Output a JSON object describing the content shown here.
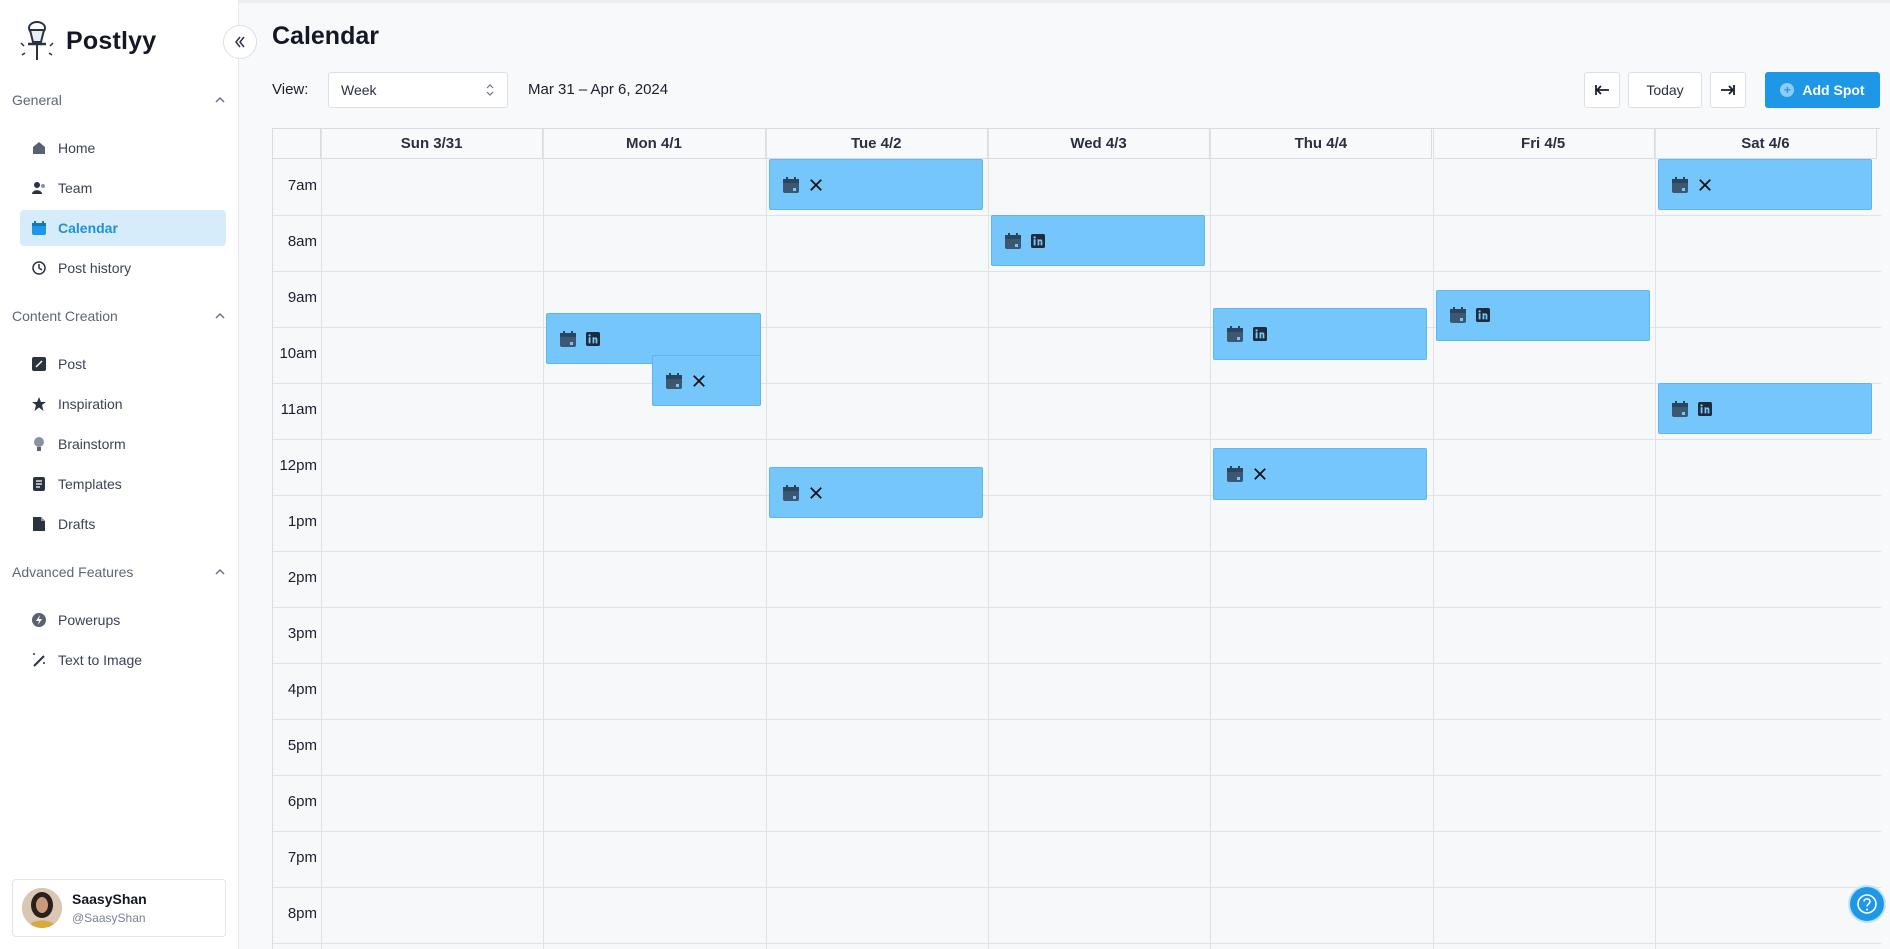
{
  "app": {
    "name": "Postlyy"
  },
  "sidebar": {
    "sections": [
      {
        "title": "General",
        "items": [
          {
            "label": "Home",
            "icon": "home-icon"
          },
          {
            "label": "Team",
            "icon": "team-icon"
          },
          {
            "label": "Calendar",
            "icon": "calendar-icon",
            "active": true
          },
          {
            "label": "Post history",
            "icon": "history-icon"
          }
        ]
      },
      {
        "title": "Content Creation",
        "items": [
          {
            "label": "Post",
            "icon": "pencil-icon"
          },
          {
            "label": "Inspiration",
            "icon": "star-icon"
          },
          {
            "label": "Brainstorm",
            "icon": "lightbulb-icon"
          },
          {
            "label": "Templates",
            "icon": "template-icon"
          },
          {
            "label": "Drafts",
            "icon": "drafts-icon"
          }
        ]
      },
      {
        "title": "Advanced Features",
        "items": [
          {
            "label": "Powerups",
            "icon": "bolt-icon"
          },
          {
            "label": "Text to Image",
            "icon": "magic-wand-icon"
          }
        ]
      }
    ],
    "user": {
      "name": "SaasyShan",
      "handle": "@SaasyShan"
    }
  },
  "header": {
    "title": "Calendar",
    "view_label": "View:",
    "view_value": "Week",
    "date_range": "Mar 31 – Apr 6, 2024",
    "today_label": "Today",
    "add_spot_label": "Add Spot"
  },
  "calendar": {
    "days": [
      "Sun 3/31",
      "Mon 4/1",
      "Tue 4/2",
      "Wed 4/3",
      "Thu 4/4",
      "Fri 4/5",
      "Sat 4/6"
    ],
    "hours": [
      "7am",
      "8am",
      "9am",
      "10am",
      "11am",
      "12pm",
      "1pm",
      "2pm",
      "3pm",
      "4pm",
      "5pm",
      "6pm",
      "7pm",
      "8pm"
    ],
    "events": [
      {
        "day": "Tue 4/2",
        "start": "7:00",
        "end": "7:55",
        "network": "x"
      },
      {
        "day": "Wed 4/3",
        "start": "8:00",
        "end": "8:55",
        "network": "linkedin"
      },
      {
        "day": "Mon 4/1",
        "start": "9:45",
        "end": "10:40",
        "network": "linkedin"
      },
      {
        "day": "Mon 4/1",
        "start": "10:30",
        "end": "11:25",
        "network": "x"
      },
      {
        "day": "Thu 4/4",
        "start": "9:40",
        "end": "10:35",
        "network": "linkedin"
      },
      {
        "day": "Fri 4/5",
        "start": "9:20",
        "end": "10:15",
        "network": "linkedin"
      },
      {
        "day": "Sat 4/6",
        "start": "7:00",
        "end": "7:55",
        "network": "x"
      },
      {
        "day": "Sat 4/6",
        "start": "11:00",
        "end": "11:55",
        "network": "linkedin"
      },
      {
        "day": "Tue 4/2",
        "start": "12:30",
        "end": "13:25",
        "network": "x"
      },
      {
        "day": "Thu 4/4",
        "start": "12:10",
        "end": "13:05",
        "network": "x"
      }
    ]
  },
  "colors": {
    "accent": "#1e98e6",
    "event_fill": "#74c6fb",
    "active_nav_bg": "#d6ecfb"
  }
}
